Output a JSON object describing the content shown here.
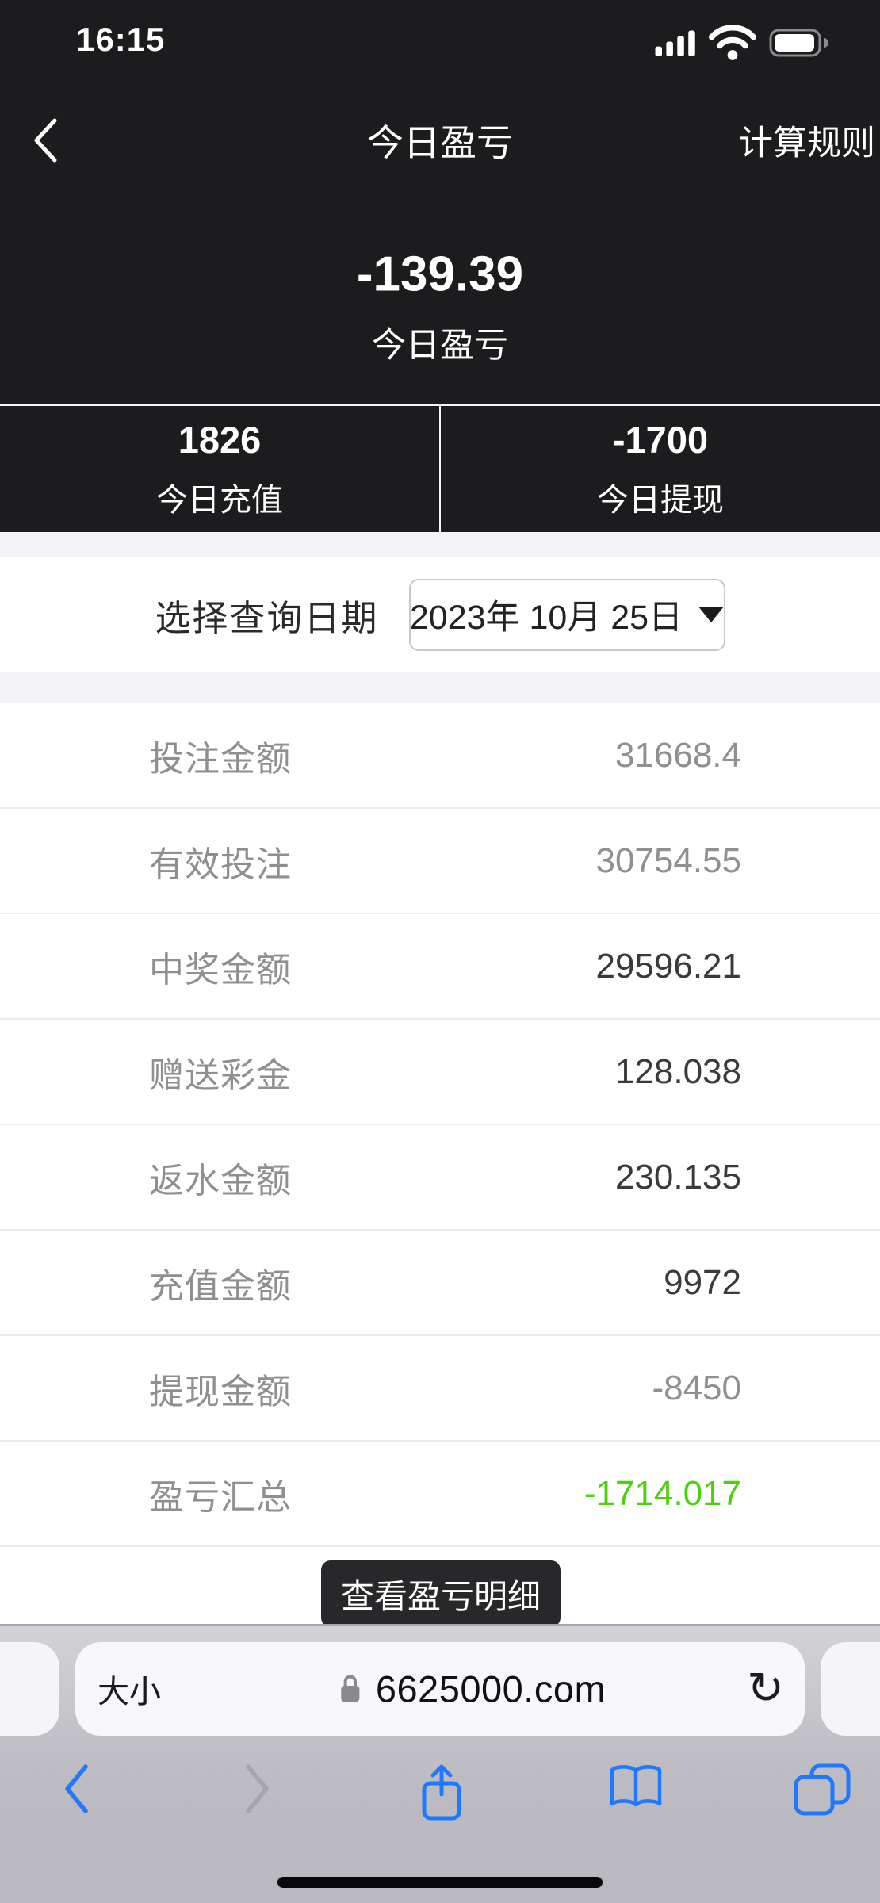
{
  "status_bar": {
    "time": "16:15",
    "icons": {
      "signal": "cellular-signal-icon",
      "wifi": "wifi-icon",
      "battery": "battery-full-icon"
    }
  },
  "nav": {
    "back_icon": "chevron-left",
    "title": "今日盈亏",
    "rules_link": "计算规则"
  },
  "hero": {
    "value": "-139.39",
    "label": "今日盈亏"
  },
  "stats": [
    {
      "value": "1826",
      "label": "今日充值"
    },
    {
      "value": "-1700",
      "label": "今日提现"
    }
  ],
  "date_picker": {
    "label": "选择查询日期",
    "value": "2023年 10月 25日",
    "dropdown_icon": "caret-down"
  },
  "rows": [
    {
      "label": "投注金额",
      "value": "31668.4",
      "value_color": "#909092"
    },
    {
      "label": "有效投注",
      "value": "30754.55",
      "value_color": "#909092"
    },
    {
      "label": "中奖金额",
      "value": "29596.21",
      "value_color": "#3a3a3c"
    },
    {
      "label": "赠送彩金",
      "value": "128.038",
      "value_color": "#3a3a3c"
    },
    {
      "label": "返水金额",
      "value": "230.135",
      "value_color": "#3a3a3c"
    },
    {
      "label": "充值金额",
      "value": "9972",
      "value_color": "#3a3a3c"
    },
    {
      "label": "提现金额",
      "value": "-8450",
      "value_color": "#909092"
    },
    {
      "label": "盈亏汇总",
      "value": "-1714.017",
      "value_color": "#4bd10a"
    }
  ],
  "detail_button": {
    "label": "查看盈亏明细"
  },
  "browser": {
    "text_size_button": "大小",
    "lock_icon": "lock",
    "url": "6625000.com",
    "reload_icon": "↻",
    "toolbar_icons": [
      "back",
      "forward",
      "share",
      "bookmarks",
      "tabs"
    ]
  },
  "colors": {
    "dark_bg": "#1c1c1e",
    "accent_blue": "#1f79ff",
    "profit_green": "#4bd10a",
    "gray_text": "#8f8f92"
  }
}
